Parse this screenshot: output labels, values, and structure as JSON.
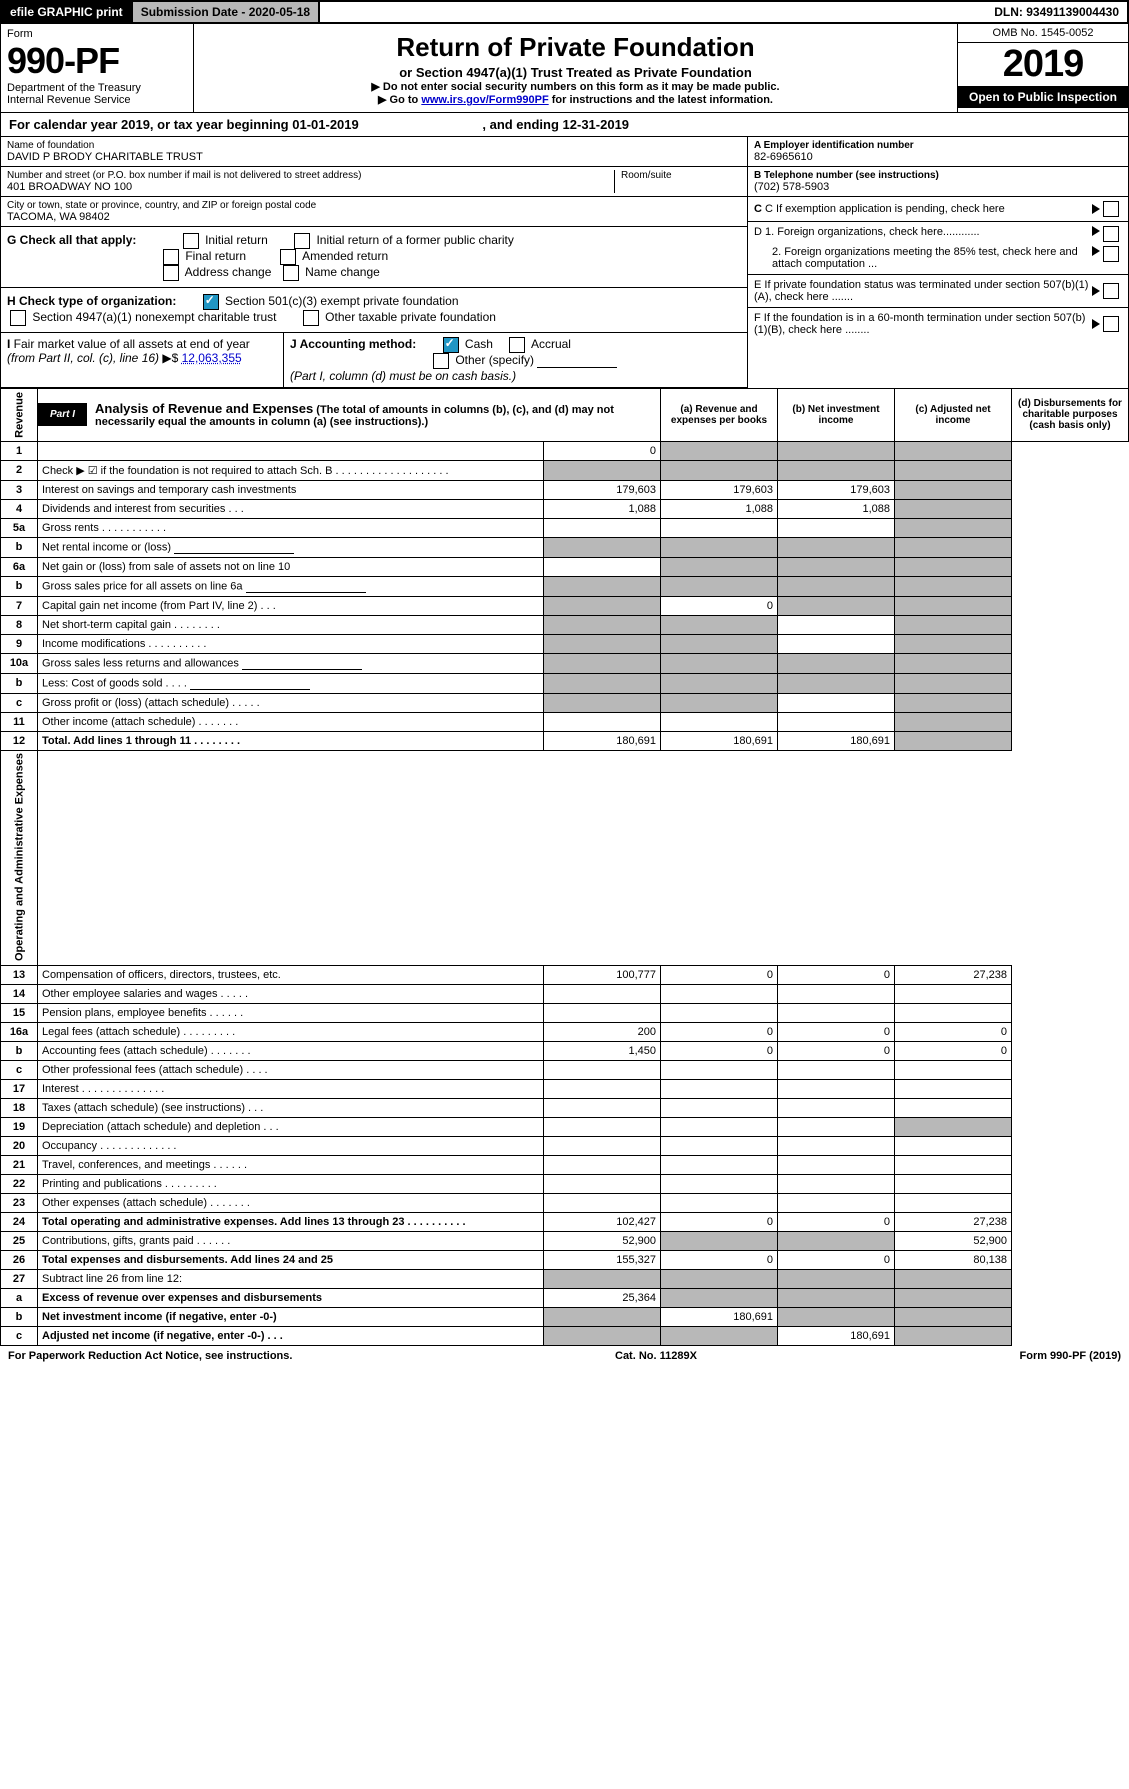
{
  "top": {
    "efile": "efile GRAPHIC print",
    "submission": "Submission Date - 2020-05-18",
    "dln": "DLN: 93491139004430"
  },
  "header": {
    "form_label": "Form",
    "form_no": "990-PF",
    "dept": "Department of the Treasury\nInternal Revenue Service",
    "title": "Return of Private Foundation",
    "subtitle": "or Section 4947(a)(1) Trust Treated as Private Foundation",
    "note1": "▶ Do not enter social security numbers on this form as it may be made public.",
    "note2": "▶ Go to ",
    "link": "www.irs.gov/Form990PF",
    "note3": " for instructions and the latest information.",
    "omb": "OMB No. 1545-0052",
    "year": "2019",
    "open": "Open to Public Inspection"
  },
  "cal_year": {
    "prefix": "For calendar year 2019, or tax year beginning ",
    "begin": "01-01-2019",
    "mid": " , and ending ",
    "end": "12-31-2019"
  },
  "info": {
    "name_lbl": "Name of foundation",
    "name": "DAVID P BRODY CHARITABLE TRUST",
    "addr_lbl": "Number and street (or P.O. box number if mail is not delivered to street address)",
    "addr": "401 BROADWAY NO 100",
    "room_lbl": "Room/suite",
    "city_lbl": "City or town, state or province, country, and ZIP or foreign postal code",
    "city": "TACOMA, WA  98402",
    "ein_lbl": "A Employer identification number",
    "ein": "82-6965610",
    "tel_lbl": "B Telephone number (see instructions)",
    "tel": "(702) 578-5903",
    "c_lbl": "C If exemption application is pending, check here",
    "d1": "D 1. Foreign organizations, check here............",
    "d2": "2. Foreign organizations meeting the 85% test, check here and attach computation ...",
    "e_lbl": "E  If private foundation status was terminated under section 507(b)(1)(A), check here .......",
    "f_lbl": "F  If the foundation is in a 60-month termination under section 507(b)(1)(B), check here ........"
  },
  "g": {
    "label": "G Check all that apply:",
    "opts": [
      "Initial return",
      "Final return",
      "Address change",
      "Initial return of a former public charity",
      "Amended return",
      "Name change"
    ]
  },
  "h": {
    "label": "H Check type of organization:",
    "o1": "Section 501(c)(3) exempt private foundation",
    "o2": "Section 4947(a)(1) nonexempt charitable trust",
    "o3": "Other taxable private foundation"
  },
  "i": {
    "label": "I Fair market value of all assets at end of year (from Part II, col. (c), line 16) ▶$",
    "val": "12,063,355"
  },
  "j": {
    "label": "J Accounting method:",
    "cash": "Cash",
    "accrual": "Accrual",
    "other": "Other (specify)",
    "note": "(Part I, column (d) must be on cash basis.)"
  },
  "part1": {
    "badge": "Part I",
    "title": "Analysis of Revenue and Expenses",
    "sub": " (The total of amounts in columns (b), (c), and (d) may not necessarily equal the amounts in column (a) (see instructions).)",
    "cols": {
      "a": "(a)    Revenue and expenses per books",
      "b": "(b)   Net investment income",
      "c": "(c)   Adjusted net income",
      "d": "(d)   Disbursements for charitable purposes (cash basis only)"
    }
  },
  "rev_label": "Revenue",
  "exp_label": "Operating and Administrative Expenses",
  "rows": [
    {
      "n": "1",
      "d": "",
      "a": "0",
      "b": "",
      "c": "",
      "sb": true,
      "sc": true,
      "sd": true
    },
    {
      "n": "2",
      "d": "Check ▶ ☑ if the foundation is not required to attach Sch. B  . . . . . . . . . . . . . . . . . . .",
      "sb": true,
      "sc": true,
      "sd": true,
      "sa": true
    },
    {
      "n": "3",
      "d": "Interest on savings and temporary cash investments",
      "a": "179,603",
      "b": "179,603",
      "c": "179,603",
      "sd": true
    },
    {
      "n": "4",
      "d": "Dividends and interest from securities   .   .   .",
      "a": "1,088",
      "b": "1,088",
      "c": "1,088",
      "sd": true
    },
    {
      "n": "5a",
      "d": "Gross rents     .   .   .   .   .   .   .   .   .   .   .",
      "sd": true
    },
    {
      "n": "b",
      "d": "Net rental income or (loss)",
      "sa": true,
      "sb": true,
      "sc": true,
      "sd": true,
      "line": true
    },
    {
      "n": "6a",
      "d": "Net gain or (loss) from sale of assets not on line 10",
      "sb": true,
      "sc": true,
      "sd": true
    },
    {
      "n": "b",
      "d": "Gross sales price for all assets on line 6a",
      "sa": true,
      "sb": true,
      "sc": true,
      "sd": true,
      "line": true
    },
    {
      "n": "7",
      "d": "Capital gain net income (from Part IV, line 2)    .   .   .",
      "sa": true,
      "b": "0",
      "sc": true,
      "sd": true
    },
    {
      "n": "8",
      "d": "Net short-term capital gain   .   .   .   .   .   .   .   .",
      "sa": true,
      "sb": true,
      "sd": true
    },
    {
      "n": "9",
      "d": "Income modifications   .   .   .   .   .   .   .   .   .   .",
      "sa": true,
      "sb": true,
      "sd": true
    },
    {
      "n": "10a",
      "d": "Gross sales less returns and allowances",
      "sa": true,
      "sb": true,
      "sc": true,
      "sd": true,
      "line": true
    },
    {
      "n": "b",
      "d": "Less: Cost of goods sold     .   .   .   .",
      "sa": true,
      "sb": true,
      "sc": true,
      "sd": true,
      "line": true
    },
    {
      "n": "c",
      "d": "Gross profit or (loss) (attach schedule)    .   .   .   .   .",
      "sa": true,
      "sb": true,
      "sd": true
    },
    {
      "n": "11",
      "d": "Other income (attach schedule)    .   .   .   .   .   .   .",
      "sd": true
    },
    {
      "n": "12",
      "d": "Total. Add lines 1 through 11    .   .   .   .   .   .   .   .",
      "a": "180,691",
      "b": "180,691",
      "c": "180,691",
      "bold": true,
      "sd": true
    },
    {
      "n": "13",
      "d": "Compensation of officers, directors, trustees, etc.",
      "a": "100,777",
      "b": "0",
      "c": "0",
      "dv": "27,238"
    },
    {
      "n": "14",
      "d": "Other employee salaries and wages    .   .   .   .   ."
    },
    {
      "n": "15",
      "d": "Pension plans, employee benefits    .   .   .   .   .   ."
    },
    {
      "n": "16a",
      "d": "Legal fees (attach schedule)   .   .   .   .   .   .   .   .   .",
      "a": "200",
      "b": "0",
      "c": "0",
      "dv": "0"
    },
    {
      "n": "b",
      "d": "Accounting fees (attach schedule)   .   .   .   .   .   .   .",
      "a": "1,450",
      "b": "0",
      "c": "0",
      "dv": "0"
    },
    {
      "n": "c",
      "d": "Other professional fees (attach schedule)    .   .   .   ."
    },
    {
      "n": "17",
      "d": "Interest   .   .   .   .   .   .   .   .   .   .   .   .   .   ."
    },
    {
      "n": "18",
      "d": "Taxes (attach schedule) (see instructions)    .   .   ."
    },
    {
      "n": "19",
      "d": "Depreciation (attach schedule) and depletion    .   .   .",
      "sd": true
    },
    {
      "n": "20",
      "d": "Occupancy   .   .   .   .   .   .   .   .   .   .   .   .   ."
    },
    {
      "n": "21",
      "d": "Travel, conferences, and meetings   .   .   .   .   .   ."
    },
    {
      "n": "22",
      "d": "Printing and publications   .   .   .   .   .   .   .   .   ."
    },
    {
      "n": "23",
      "d": "Other expenses (attach schedule)   .   .   .   .   .   .   ."
    },
    {
      "n": "24",
      "d": "Total operating and administrative expenses. Add lines 13 through 23   .   .   .   .   .   .   .   .   .   .",
      "a": "102,427",
      "b": "0",
      "c": "0",
      "dv": "27,238",
      "bold": true
    },
    {
      "n": "25",
      "d": "Contributions, gifts, grants paid     .   .   .   .   .   .",
      "a": "52,900",
      "sb": true,
      "sc": true,
      "dv": "52,900"
    },
    {
      "n": "26",
      "d": "Total expenses and disbursements. Add lines 24 and 25",
      "a": "155,327",
      "b": "0",
      "c": "0",
      "dv": "80,138",
      "bold": true
    },
    {
      "n": "27",
      "d": "Subtract line 26 from line 12:",
      "sa": true,
      "sb": true,
      "sc": true,
      "sd": true
    },
    {
      "n": "a",
      "d": "Excess of revenue over expenses and disbursements",
      "a": "25,364",
      "sb": true,
      "sc": true,
      "sd": true,
      "bold": true
    },
    {
      "n": "b",
      "d": "Net investment income (if negative, enter -0-)",
      "sa": true,
      "b": "180,691",
      "sc": true,
      "sd": true,
      "bold": true
    },
    {
      "n": "c",
      "d": "Adjusted net income (if negative, enter -0-)   .   .   .",
      "sa": true,
      "sb": true,
      "c": "180,691",
      "sd": true,
      "bold": true
    }
  ],
  "footer": {
    "left": "For Paperwork Reduction Act Notice, see instructions.",
    "mid": "Cat. No. 11289X",
    "right": "Form 990-PF (2019)"
  }
}
